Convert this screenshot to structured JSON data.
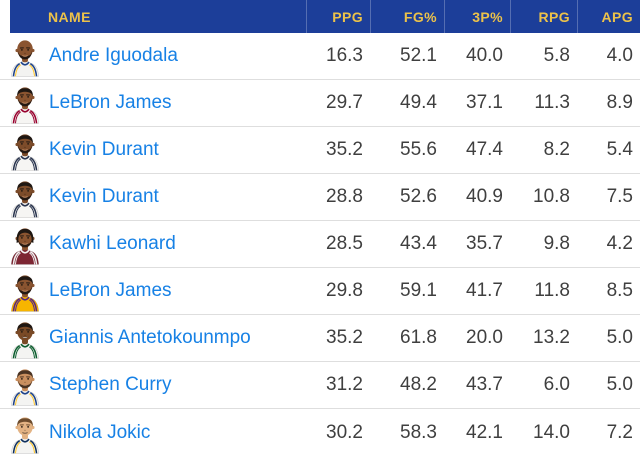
{
  "colors": {
    "header_bg": "#1c3e99",
    "header_text": "#ecc24a",
    "name_blue": "#1781e5",
    "stat_text": "#3f3f3f",
    "row_line": "#dedede",
    "page_bg": "#ffffff"
  },
  "table": {
    "columns": [
      {
        "key": "name",
        "label": "NAME"
      },
      {
        "key": "ppg",
        "label": "PPG"
      },
      {
        "key": "fg_pct",
        "label": "FG%"
      },
      {
        "key": "tp_pct",
        "label": "3P%"
      },
      {
        "key": "rpg",
        "label": "RPG"
      },
      {
        "key": "apg",
        "label": "APG"
      }
    ],
    "rows": [
      {
        "name": "Andre Iguodala",
        "ppg": "16.3",
        "fg_pct": "52.1",
        "tp_pct": "40.0",
        "rpg": "5.8",
        "apg": "4.0",
        "avatar": {
          "icon": "player-portrait-icon",
          "skin": "#8a5430",
          "hair": "bald",
          "hair_color": "#20160f",
          "beard": "#241812",
          "smile": false,
          "jersey": "#f3f3f1",
          "trim": "#1d428a",
          "accent": "#ffc72c"
        }
      },
      {
        "name": "LeBron James",
        "ppg": "29.7",
        "fg_pct": "49.4",
        "tp_pct": "37.1",
        "rpg": "11.3",
        "apg": "8.9",
        "avatar": {
          "icon": "player-portrait-icon",
          "skin": "#8a5430",
          "hair": "short",
          "hair_color": "#1f1712",
          "beard": "#241812",
          "smile": false,
          "jersey": "#f6f5f3",
          "trim": "#98002e",
          "accent": "#98002e"
        }
      },
      {
        "name": "Kevin Durant",
        "ppg": "35.2",
        "fg_pct": "55.6",
        "tp_pct": "47.4",
        "rpg": "8.2",
        "apg": "5.4",
        "avatar": {
          "icon": "player-portrait-icon",
          "skin": "#7d4c2a",
          "hair": "short",
          "hair_color": "#1f1712",
          "beard": "#241812",
          "smile": false,
          "jersey": "#f6f5f3",
          "trim": "#28334d",
          "accent": "#28334d"
        }
      },
      {
        "name": "Kevin Durant",
        "ppg": "28.8",
        "fg_pct": "52.6",
        "tp_pct": "40.9",
        "rpg": "10.8",
        "apg": "7.5",
        "avatar": {
          "icon": "player-portrait-icon",
          "skin": "#7d4c2a",
          "hair": "short",
          "hair_color": "#1f1712",
          "beard": "#241812",
          "smile": false,
          "jersey": "#f6f5f3",
          "trim": "#28334d",
          "accent": "#28334d"
        }
      },
      {
        "name": "Kawhi Leonard",
        "ppg": "28.5",
        "fg_pct": "43.4",
        "tp_pct": "35.7",
        "rpg": "9.8",
        "apg": "4.2",
        "avatar": {
          "icon": "player-portrait-icon",
          "skin": "#8a5430",
          "hair": "braids",
          "hair_color": "#1f1712",
          "beard": "#2a1c13",
          "smile": false,
          "jersey": "#7d2633",
          "trim": "#f2f2f2",
          "accent": "#f2f2f2"
        }
      },
      {
        "name": "LeBron James",
        "ppg": "29.8",
        "fg_pct": "59.1",
        "tp_pct": "41.7",
        "rpg": "11.8",
        "apg": "8.5",
        "avatar": {
          "icon": "player-portrait-icon",
          "skin": "#8a5430",
          "hair": "short",
          "hair_color": "#1f1712",
          "beard": "#241812",
          "smile": false,
          "jersey": "#f7b500",
          "trim": "#552583",
          "accent": "#552583"
        }
      },
      {
        "name": "Giannis Antetokounmpo",
        "ppg": "35.2",
        "fg_pct": "61.8",
        "tp_pct": "20.0",
        "rpg": "13.2",
        "apg": "5.0",
        "avatar": {
          "icon": "player-portrait-icon",
          "skin": "#7a4a26",
          "hair": "short",
          "hair_color": "#1f1712",
          "beard": null,
          "smile": true,
          "jersey": "#f4f4f2",
          "trim": "#0b5d2e",
          "accent": "#0b5d2e"
        }
      },
      {
        "name": "Stephen Curry",
        "ppg": "31.2",
        "fg_pct": "48.2",
        "tp_pct": "43.7",
        "rpg": "6.0",
        "apg": "5.0",
        "avatar": {
          "icon": "player-portrait-icon",
          "skin": "#c98f5f",
          "hair": "short",
          "hair_color": "#4a3322",
          "beard": "#4a3322",
          "smile": false,
          "jersey": "#f4f4f2",
          "trim": "#1d428a",
          "accent": "#ffc72c"
        }
      },
      {
        "name": "Nikola Jokic",
        "ppg": "30.2",
        "fg_pct": "58.3",
        "tp_pct": "42.1",
        "rpg": "14.0",
        "apg": "7.2",
        "avatar": {
          "icon": "player-portrait-icon",
          "skin": "#e3b384",
          "hair": "short",
          "hair_color": "#6d4c2d",
          "beard": null,
          "smile": false,
          "jersey": "#f4f4f2",
          "trim": "#10315e",
          "accent": "#fec524"
        }
      }
    ]
  }
}
